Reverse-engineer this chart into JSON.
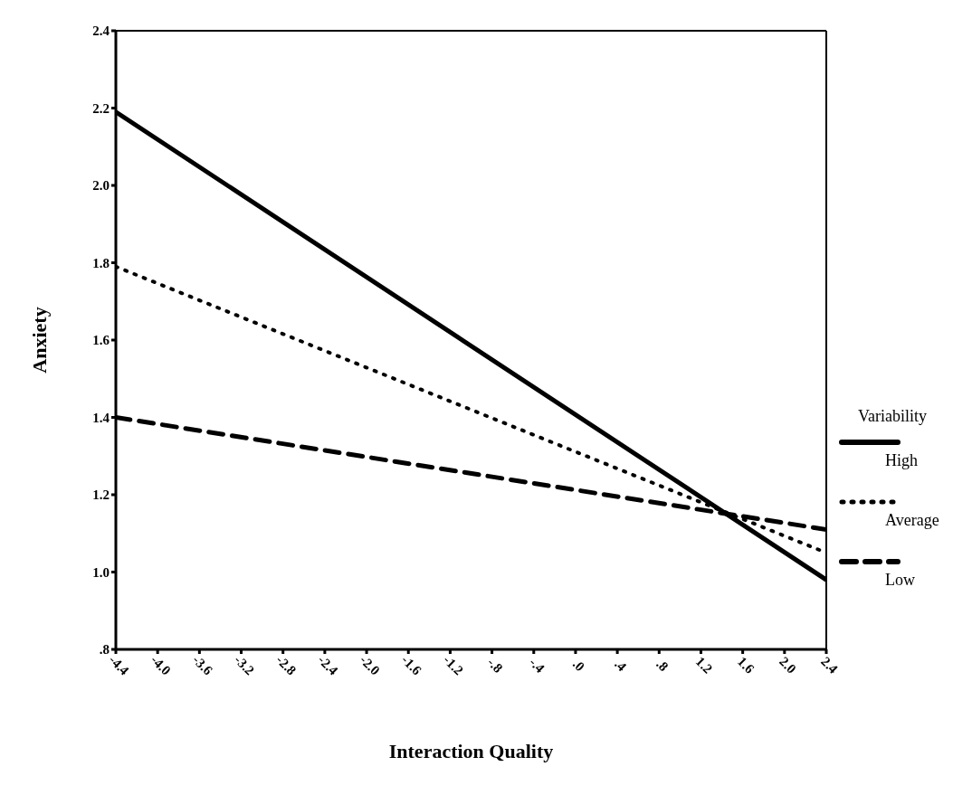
{
  "chart_data": {
    "type": "line",
    "xlabel": "Interaction Quality",
    "ylabel": "Anxiety",
    "legend_title": "Variability",
    "legend": "right",
    "grid": false,
    "marker": "none",
    "x": [
      -4.4,
      2.4
    ],
    "series": [
      {
        "name": "High",
        "color": "#000000",
        "line_style": "solid",
        "values": [
          2.19,
          0.98
        ]
      },
      {
        "name": "Average",
        "color": "#000000",
        "line_style": "dotted",
        "values": [
          1.79,
          1.05
        ]
      },
      {
        "name": "Low",
        "color": "#000000",
        "line_style": "dashed",
        "values": [
          1.4,
          1.11
        ]
      }
    ],
    "xlim": [
      -4.4,
      2.4
    ],
    "xticks": [
      {
        "value": -4.4,
        "label": "-4.4"
      },
      {
        "value": -4.0,
        "label": "-4.0"
      },
      {
        "value": -3.6,
        "label": "-3.6"
      },
      {
        "value": -3.2,
        "label": "-3.2"
      },
      {
        "value": -2.8,
        "label": "-2.8"
      },
      {
        "value": -2.4,
        "label": "-2.4"
      },
      {
        "value": -2.0,
        "label": "-2.0"
      },
      {
        "value": -1.6,
        "label": "-1.6"
      },
      {
        "value": -1.2,
        "label": "-1.2"
      },
      {
        "value": -0.8,
        "label": "-.8"
      },
      {
        "value": -0.4,
        "label": "-.4"
      },
      {
        "value": 0,
        "label": ".0"
      },
      {
        "value": 0.4,
        "label": ".4"
      },
      {
        "value": 0.8,
        "label": ".8"
      },
      {
        "value": 1.2,
        "label": "1.2"
      },
      {
        "value": 1.6,
        "label": "1.6"
      },
      {
        "value": 2.0,
        "label": "2.0"
      },
      {
        "value": 2.4,
        "label": "2.4"
      }
    ],
    "ylim": [
      0.8,
      2.4
    ],
    "yticks": [
      {
        "value": 0.8,
        "label": ".8"
      },
      {
        "value": 1.0,
        "label": "1.0"
      },
      {
        "value": 1.2,
        "label": "1.2"
      },
      {
        "value": 1.4,
        "label": "1.4"
      },
      {
        "value": 1.6,
        "label": "1.6"
      },
      {
        "value": 1.8,
        "label": "1.8"
      },
      {
        "value": 2.0,
        "label": "2.0"
      },
      {
        "value": 2.2,
        "label": "2.2"
      },
      {
        "value": 2.4,
        "label": "2.4"
      }
    ]
  }
}
